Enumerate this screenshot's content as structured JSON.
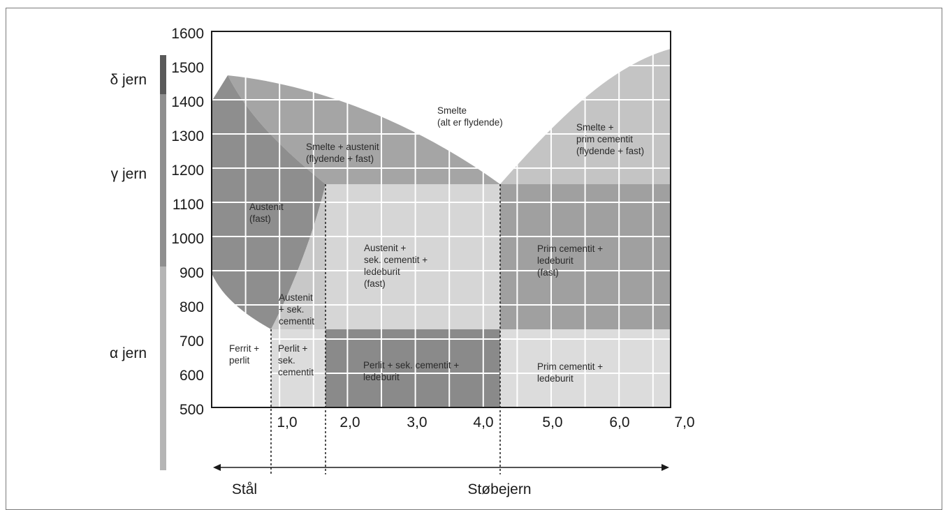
{
  "y_axis": {
    "ticks": [
      "1600",
      "1500",
      "1400",
      "1300",
      "1200",
      "1100",
      "1000",
      "900",
      "800",
      "700",
      "600",
      "500"
    ]
  },
  "x_axis": {
    "ticks": [
      "1,0",
      "2,0",
      "3,0",
      "4,0",
      "5,0",
      "6,0",
      "7,0"
    ]
  },
  "phase_labels": {
    "delta": "δ jern",
    "gamma": "γ jern",
    "alpha": "α jern"
  },
  "regions": {
    "smelte": [
      "Smelte",
      "(alt er flydende)"
    ],
    "smelte_prim": [
      "Smelte +",
      "prim cementit",
      "(flydende + fast)"
    ],
    "smelte_austenit": [
      "Smelte + austenit",
      "(flydende + fast)"
    ],
    "austenit": [
      "Austenit",
      "(fast)"
    ],
    "austenit_sek_led": [
      "Austenit +",
      "sek. cementit +",
      "ledeburit",
      "(fast)"
    ],
    "prim_led_fast": [
      "Prim cementit +",
      "ledeburit",
      "(fast)"
    ],
    "austenit_sek": [
      "Austenit",
      "+ sek.",
      "cementit"
    ],
    "ferrit": [
      "Ferrit +",
      "perlit"
    ],
    "perlit_sek": [
      "Perlit +",
      "sek.",
      "cementit"
    ],
    "perlit_sek_led": [
      "Perlit + sek. cementit +",
      "ledeburit"
    ],
    "prim_led": [
      "Prim cementit +",
      "ledeburit"
    ]
  },
  "bottom": {
    "steel": "Stål",
    "cast_iron": "Støbejern"
  },
  "colors": {
    "dark": "#8e8e8e",
    "mid": "#a5a5a5",
    "light": "#c4c4c4",
    "pale": "#dcdcdc",
    "grid": "#ffffff"
  }
}
